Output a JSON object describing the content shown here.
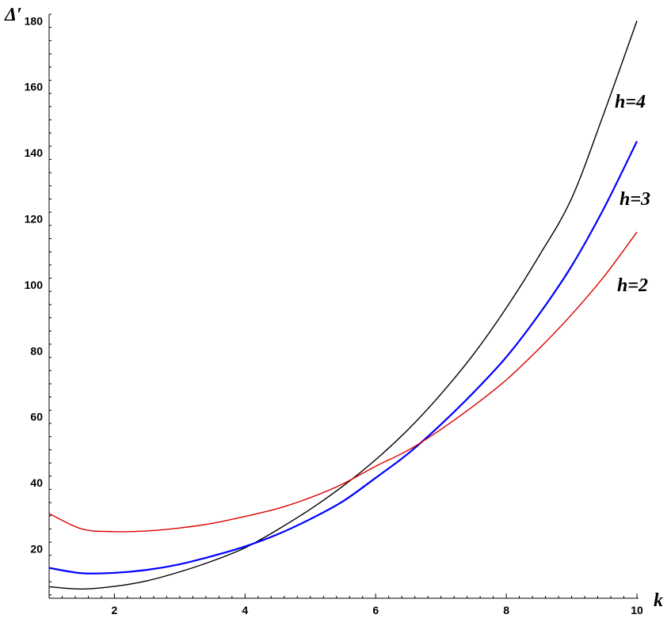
{
  "chart_data": {
    "type": "line",
    "title": "",
    "xlabel": "k",
    "ylabel": "Δ′",
    "xlim": [
      1,
      10
    ],
    "ylim": [
      5,
      182
    ],
    "x_ticks": [
      2,
      4,
      6,
      8,
      10
    ],
    "y_ticks": [
      20,
      40,
      60,
      80,
      100,
      120,
      140,
      160,
      180
    ],
    "grid": false,
    "legend": "none",
    "series": [
      {
        "name": "h=4",
        "color": "#000000",
        "x": [
          1,
          1.5,
          2,
          2.5,
          3,
          3.5,
          4,
          4.5,
          5,
          5.5,
          6,
          6.5,
          7,
          7.5,
          8,
          8.5,
          9,
          9.5,
          10
        ],
        "y": [
          8.5,
          7.8,
          8.6,
          10.3,
          13.0,
          16.3,
          20.3,
          25.8,
          32.0,
          39.0,
          47.0,
          56.2,
          66.9,
          79.0,
          93.0,
          108.7,
          126.2,
          152.3,
          180.0
        ]
      },
      {
        "name": "h=3",
        "color": "#0000ff",
        "x": [
          1,
          1.5,
          2,
          2.5,
          3,
          3.5,
          4,
          4.5,
          5,
          5.5,
          6,
          6.5,
          7,
          7.5,
          8,
          8.5,
          9,
          9.5,
          10
        ],
        "y": [
          14.2,
          12.6,
          12.7,
          13.6,
          15.3,
          17.8,
          20.7,
          24.4,
          29.0,
          34.4,
          41.5,
          48.9,
          57.7,
          67.4,
          78.1,
          91.0,
          105.7,
          123.4,
          143.5
        ]
      },
      {
        "name": "h=2",
        "color": "#dd0000",
        "x": [
          1,
          1.5,
          2,
          2.5,
          3,
          3.5,
          4,
          4.5,
          5,
          5.5,
          6,
          6.5,
          7,
          7.5,
          8,
          8.5,
          9,
          9.5,
          10
        ],
        "y": [
          30.7,
          26.0,
          25.2,
          25.4,
          26.3,
          27.7,
          29.8,
          32.2,
          35.5,
          39.7,
          45.0,
          49.9,
          56.2,
          63.3,
          71.2,
          80.6,
          91.0,
          102.6,
          116.0
        ]
      }
    ]
  }
}
